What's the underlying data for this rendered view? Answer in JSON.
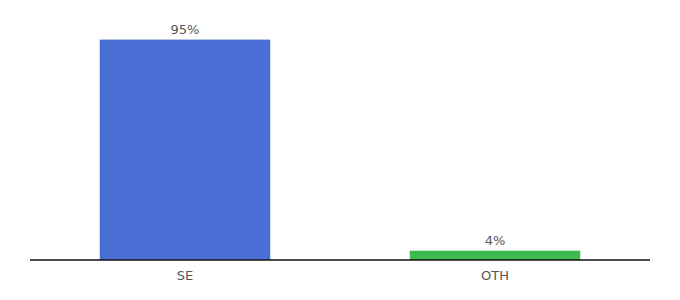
{
  "chart_data": {
    "type": "bar",
    "categories": [
      "SE",
      "OTH"
    ],
    "values": [
      95,
      4
    ],
    "value_labels": [
      "95%",
      "4%"
    ],
    "colors": [
      "#4a6fd4",
      "#3dba4e"
    ],
    "ylim": [
      0,
      100
    ],
    "data_labels": true,
    "tick_labels": "x"
  }
}
